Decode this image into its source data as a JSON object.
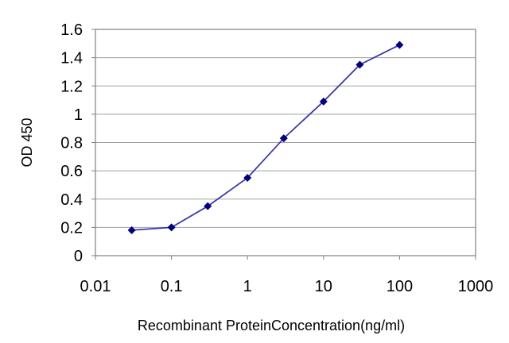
{
  "chart_data": {
    "type": "line",
    "title": "",
    "xlabel": "Recombinant ProteinConcentration(ng/ml)",
    "ylabel": "OD 450",
    "xscale": "log",
    "xlim": [
      0.01,
      1000
    ],
    "ylim": [
      0,
      1.6
    ],
    "x_ticks": [
      0.01,
      0.1,
      1,
      10,
      100,
      1000
    ],
    "x_tick_labels": [
      "0.01",
      "0.1",
      "1",
      "10",
      "100",
      "1000"
    ],
    "y_ticks": [
      0,
      0.2,
      0.4,
      0.6,
      0.8,
      1,
      1.2,
      1.4,
      1.6
    ],
    "y_tick_labels": [
      "0",
      "0.2",
      "0.4",
      "0.6",
      "0.8",
      "1",
      "1.2",
      "1.4",
      "1.6"
    ],
    "grid": "horizontal",
    "legend": "none",
    "series": [
      {
        "x": [
          0.03,
          0.1,
          0.3,
          1,
          3,
          10,
          30,
          100
        ],
        "y": [
          0.18,
          0.2,
          0.35,
          0.55,
          0.83,
          1.09,
          1.35,
          1.49
        ],
        "color": "#3a3aa8",
        "marker_color": "#00007a",
        "marker": "diamond"
      }
    ]
  }
}
